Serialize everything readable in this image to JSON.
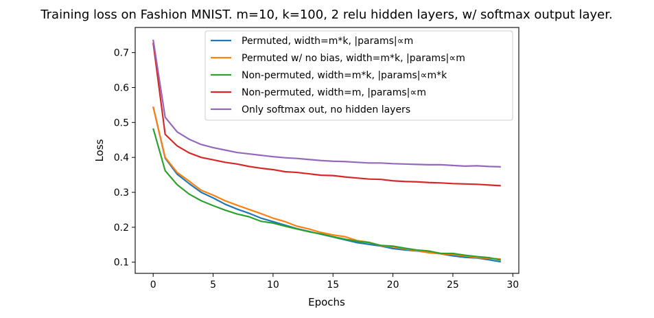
{
  "chart_data": {
    "type": "line",
    "title": "Training loss on Fashion MNIST. m=10, k=100, 2 relu hidden layers, w/ softmax output layer.",
    "xlabel": "Epochs",
    "ylabel": "Loss",
    "xlim": [
      -1.5,
      30.5
    ],
    "ylim": [
      0.068,
      0.772
    ],
    "xticks": [
      0,
      5,
      10,
      15,
      20,
      25,
      30
    ],
    "yticks": [
      0.1,
      0.2,
      0.3,
      0.4,
      0.5,
      0.6,
      0.7
    ],
    "grid": false,
    "legend_position": "top-right",
    "x": [
      0,
      1,
      2,
      3,
      4,
      5,
      6,
      7,
      8,
      9,
      10,
      11,
      12,
      13,
      14,
      15,
      16,
      17,
      18,
      19,
      20,
      21,
      22,
      23,
      24,
      25,
      26,
      27,
      28,
      29
    ],
    "series": [
      {
        "name": "Permuted, width=m*k, |params|∝m",
        "color": "#1f77b4",
        "values": [
          0.545,
          0.398,
          0.352,
          0.325,
          0.3,
          0.284,
          0.266,
          0.252,
          0.24,
          0.226,
          0.216,
          0.206,
          0.196,
          0.188,
          0.18,
          0.172,
          0.164,
          0.156,
          0.151,
          0.146,
          0.139,
          0.135,
          0.132,
          0.128,
          0.124,
          0.118,
          0.114,
          0.112,
          0.107,
          0.101
        ]
      },
      {
        "name": "Permuted w/ no bias, width=m*k, |params|∝m",
        "color": "#ff7f0e",
        "values": [
          0.545,
          0.4,
          0.357,
          0.332,
          0.306,
          0.292,
          0.276,
          0.263,
          0.251,
          0.239,
          0.226,
          0.216,
          0.203,
          0.195,
          0.185,
          0.178,
          0.173,
          0.162,
          0.157,
          0.147,
          0.144,
          0.138,
          0.133,
          0.127,
          0.124,
          0.122,
          0.118,
          0.113,
          0.111,
          0.109
        ]
      },
      {
        "name": "Non-permuted, width=m*k, |params|∝m*k",
        "color": "#2ca02c",
        "values": [
          0.483,
          0.362,
          0.322,
          0.295,
          0.276,
          0.262,
          0.249,
          0.238,
          0.23,
          0.217,
          0.212,
          0.203,
          0.195,
          0.187,
          0.181,
          0.173,
          0.166,
          0.16,
          0.156,
          0.148,
          0.146,
          0.14,
          0.135,
          0.132,
          0.125,
          0.125,
          0.12,
          0.116,
          0.113,
          0.106
        ]
      },
      {
        "name": "Non-permuted, width=m, |params|∝m",
        "color": "#d62728",
        "values": [
          0.728,
          0.466,
          0.433,
          0.413,
          0.4,
          0.393,
          0.386,
          0.381,
          0.374,
          0.369,
          0.365,
          0.359,
          0.357,
          0.353,
          0.349,
          0.348,
          0.344,
          0.341,
          0.338,
          0.337,
          0.333,
          0.331,
          0.33,
          0.328,
          0.327,
          0.325,
          0.324,
          0.323,
          0.321,
          0.319
        ]
      },
      {
        "name": "Only softmax out, no hidden layers",
        "color": "#9467bd",
        "values": [
          0.737,
          0.515,
          0.473,
          0.452,
          0.437,
          0.428,
          0.421,
          0.414,
          0.41,
          0.406,
          0.402,
          0.399,
          0.397,
          0.394,
          0.391,
          0.389,
          0.388,
          0.386,
          0.384,
          0.384,
          0.382,
          0.381,
          0.38,
          0.379,
          0.379,
          0.377,
          0.375,
          0.376,
          0.374,
          0.373
        ]
      }
    ]
  }
}
